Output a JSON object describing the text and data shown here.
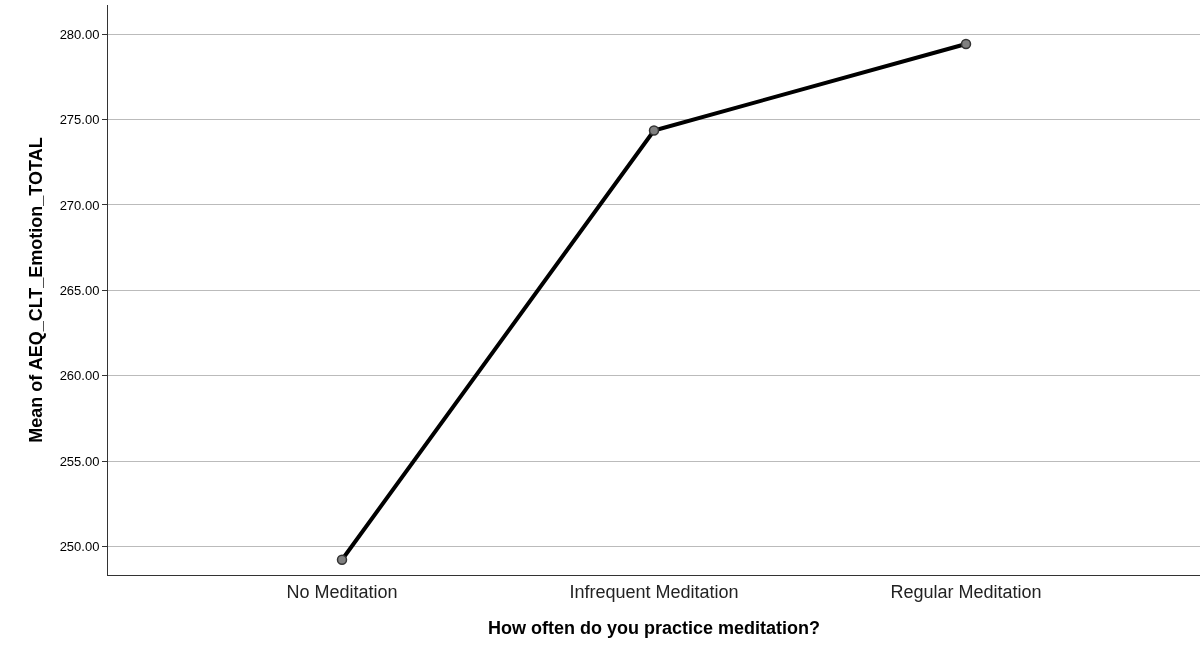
{
  "chart_data": {
    "type": "line",
    "xlabel": "How often do you practice meditation?",
    "ylabel": "Mean of AEQ_CLT_Emotion_TOTAL",
    "categories": [
      "No Meditation",
      "Infrequent Meditation",
      "Regular Meditation"
    ],
    "series": [
      {
        "color": "#000000",
        "values": [
          249.24,
          274.36,
          279.42
        ]
      }
    ],
    "ylim": [
      248.35,
      281.7
    ],
    "yticks": [
      {
        "value": 250,
        "label": "250.00"
      },
      {
        "value": 255,
        "label": "255.00"
      },
      {
        "value": 260,
        "label": "260.00"
      },
      {
        "value": 265,
        "label": "265.00"
      },
      {
        "value": 270,
        "label": "270.00"
      },
      {
        "value": 275,
        "label": "275.00"
      },
      {
        "value": 280,
        "label": "280.00"
      }
    ],
    "grid": "y",
    "marker": "circle",
    "line_style": "solid"
  }
}
